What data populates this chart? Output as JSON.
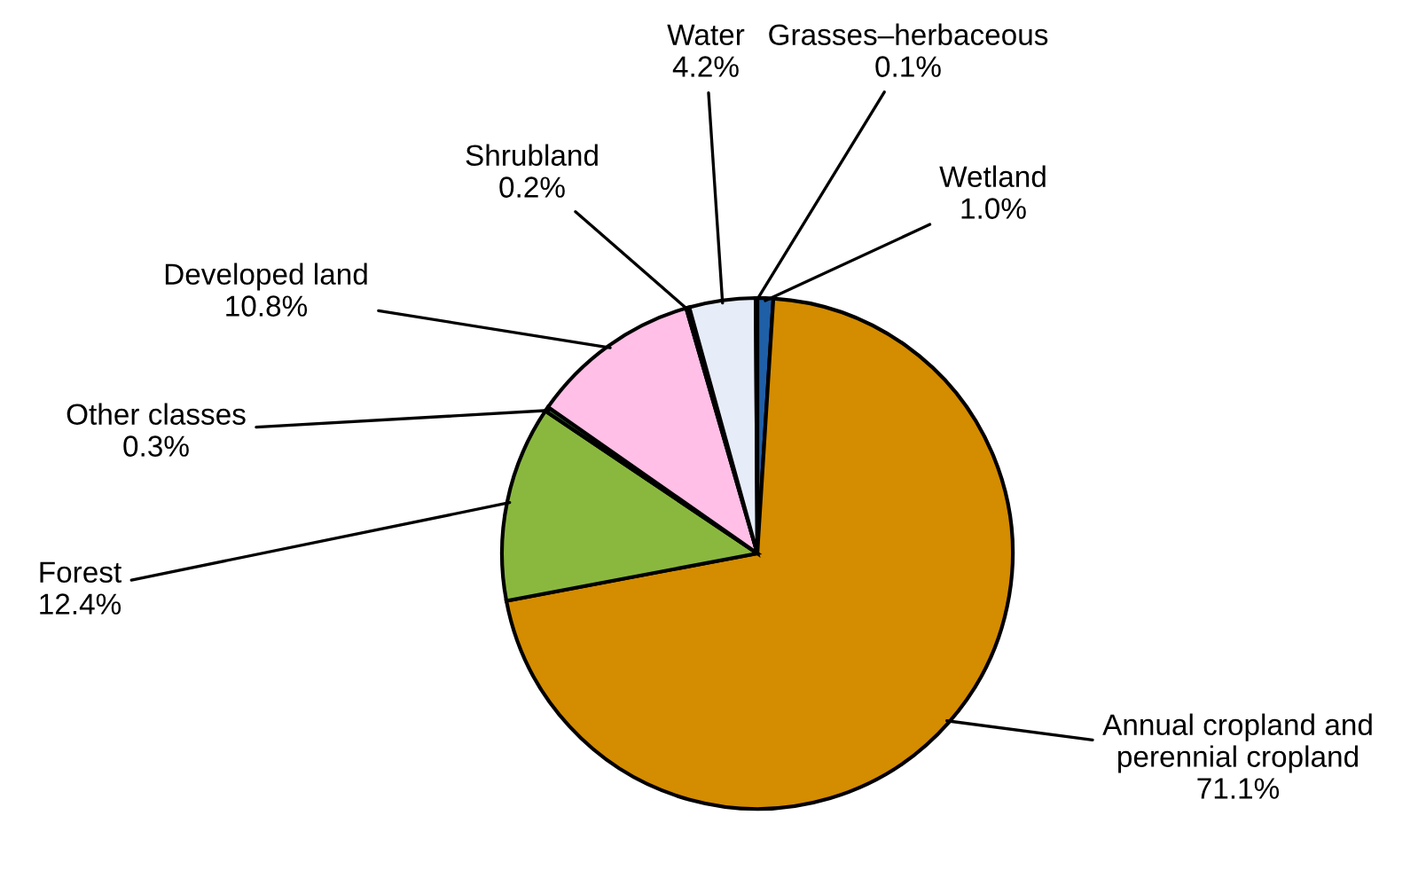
{
  "chart_data": {
    "type": "pie",
    "categories": [
      "Wetland",
      "Annual cropland and\nperennial cropland",
      "Forest",
      "Other classes",
      "Developed land",
      "Shrubland",
      "Water",
      "Grasses–herbaceous"
    ],
    "values": [
      1.0,
      71.1,
      12.4,
      0.3,
      10.8,
      0.2,
      4.2,
      0.1
    ],
    "colors": [
      "#1f5fa8",
      "#d48c00",
      "#8ab83f",
      "#2f5f2f",
      "#ffbfe6",
      "#404040",
      "#e6ecf8",
      "#303030"
    ],
    "value_labels": [
      "1.0%",
      "71.1%",
      "12.4%",
      "0.3%",
      "10.8%",
      "0.2%",
      "4.2%",
      "0.1%"
    ]
  }
}
